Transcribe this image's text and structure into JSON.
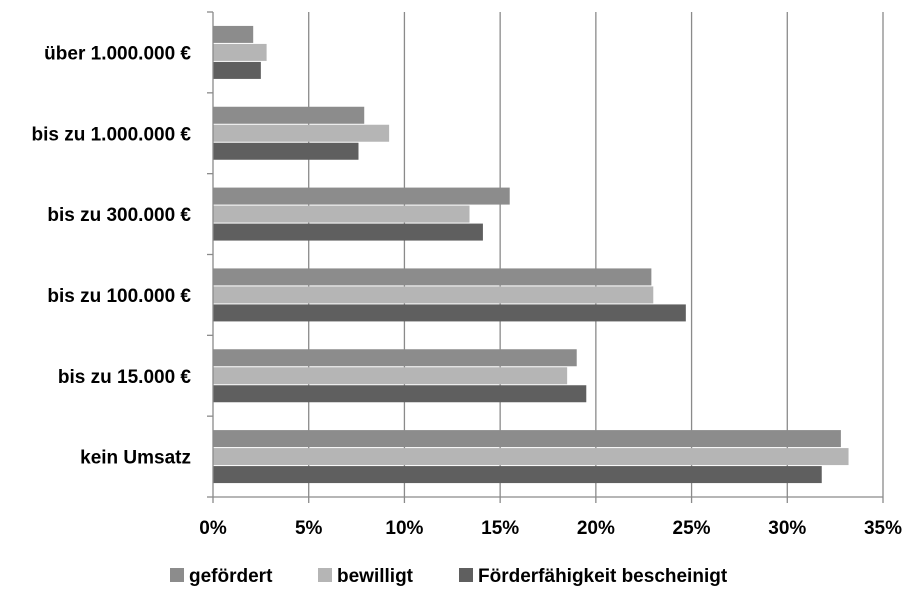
{
  "chart_data": {
    "type": "bar",
    "orientation": "horizontal",
    "categories": [
      "über 1.000.000 €",
      "bis zu 1.000.000 €",
      "bis zu 300.000 €",
      "bis zu 100.000 €",
      "bis zu 15.000 €",
      "kein Umsatz"
    ],
    "series": [
      {
        "name": "gefördert",
        "color": "#8c8c8c",
        "values": [
          2.1,
          7.9,
          15.5,
          22.9,
          19.0,
          32.8
        ]
      },
      {
        "name": "bewilligt",
        "color": "#b5b5b5",
        "values": [
          2.8,
          9.2,
          13.4,
          23.0,
          18.5,
          33.2
        ]
      },
      {
        "name": "Förderfähigkeit bescheinigt",
        "color": "#5f5f5f",
        "values": [
          2.5,
          7.6,
          14.1,
          24.7,
          19.5,
          31.8
        ]
      }
    ],
    "x_ticks": [
      "0%",
      "5%",
      "10%",
      "15%",
      "20%",
      "25%",
      "30%",
      "35%"
    ],
    "xlim": [
      0,
      35
    ],
    "grid": "vertical",
    "legend_position": "bottom"
  }
}
